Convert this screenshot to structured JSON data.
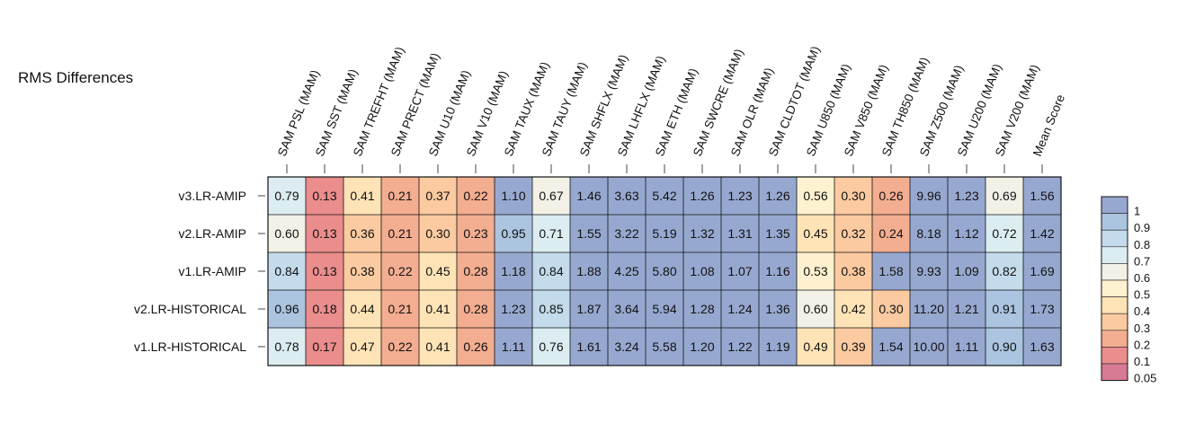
{
  "chart_data": {
    "type": "heatmap",
    "title": "RMS Differences",
    "columns": [
      "SAM PSL (MAM)",
      "SAM SST (MAM)",
      "SAM TREFHT (MAM)",
      "SAM PRECT (MAM)",
      "SAM U10 (MAM)",
      "SAM V10 (MAM)",
      "SAM TAUX (MAM)",
      "SAM TAUY (MAM)",
      "SAM SHFLX (MAM)",
      "SAM LHFLX (MAM)",
      "SAM ETH (MAM)",
      "SAM SWCRE (MAM)",
      "SAM OLR (MAM)",
      "SAM CLDTOT (MAM)",
      "SAM U850 (MAM)",
      "SAM V850 (MAM)",
      "SAM TH850 (MAM)",
      "SAM Z500 (MAM)",
      "SAM U200 (MAM)",
      "SAM V200 (MAM)",
      "Mean Score"
    ],
    "rows": [
      "v3.LR-AMIP",
      "v2.LR-AMIP",
      "v1.LR-AMIP",
      "v2.LR-HISTORICAL",
      "v1.LR-HISTORICAL"
    ],
    "values": [
      [
        "0.79",
        "0.13",
        "0.41",
        "0.21",
        "0.37",
        "0.22",
        "1.10",
        "0.67",
        "1.46",
        "3.63",
        "5.42",
        "1.26",
        "1.23",
        "1.26",
        "0.56",
        "0.30",
        "0.26",
        "9.96",
        "1.23",
        "0.69",
        "1.56"
      ],
      [
        "0.60",
        "0.13",
        "0.36",
        "0.21",
        "0.30",
        "0.23",
        "0.95",
        "0.71",
        "1.55",
        "3.22",
        "5.19",
        "1.32",
        "1.31",
        "1.35",
        "0.45",
        "0.32",
        "0.24",
        "8.18",
        "1.12",
        "0.72",
        "1.42"
      ],
      [
        "0.84",
        "0.13",
        "0.38",
        "0.22",
        "0.45",
        "0.28",
        "1.18",
        "0.84",
        "1.88",
        "4.25",
        "5.80",
        "1.08",
        "1.07",
        "1.16",
        "0.53",
        "0.38",
        "1.58",
        "9.93",
        "1.09",
        "0.82",
        "1.69"
      ],
      [
        "0.96",
        "0.18",
        "0.44",
        "0.21",
        "0.41",
        "0.28",
        "1.23",
        "0.85",
        "1.87",
        "3.64",
        "5.94",
        "1.28",
        "1.24",
        "1.36",
        "0.60",
        "0.42",
        "0.30",
        "11.20",
        "1.21",
        "0.91",
        "1.73"
      ],
      [
        "0.78",
        "0.17",
        "0.47",
        "0.22",
        "0.41",
        "0.26",
        "1.11",
        "0.76",
        "1.61",
        "3.24",
        "5.58",
        "1.20",
        "1.22",
        "1.19",
        "0.49",
        "0.39",
        "1.54",
        "10.00",
        "1.11",
        "0.90",
        "1.63"
      ]
    ],
    "colorbar": {
      "ticks": [
        "1",
        "0.9",
        "0.8",
        "0.7",
        "0.6",
        "0.5",
        "0.4",
        "0.3",
        "0.2",
        "0.1",
        "0.05"
      ],
      "colors": [
        "#97a8d0",
        "#abc4df",
        "#c3dbea",
        "#dcedf2",
        "#f3f1e6",
        "#fdf1cf",
        "#fee3b6",
        "#fbcaa0",
        "#f3ad90",
        "#ea8d8c",
        "#d77a94"
      ]
    }
  }
}
